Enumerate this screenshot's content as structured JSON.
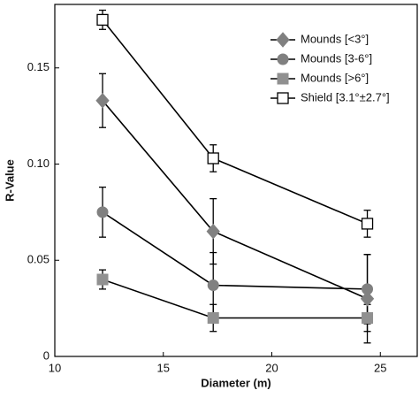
{
  "chart_data": {
    "type": "line",
    "x_label": "Diameter (m)",
    "y_label": "R-Value",
    "xlim": [
      10,
      26.7
    ],
    "xticks": [
      10,
      15,
      20,
      25
    ],
    "ylim": [
      0,
      0.183
    ],
    "yticks": [
      0,
      0.05,
      {
        "value": 0.1,
        "label": "0.10"
      },
      0.15
    ],
    "legend": "top-right",
    "series": [
      {
        "name": "Mounds [<3°]",
        "color": "#808080",
        "marker": "diamond",
        "x": [
          12.2,
          17.3,
          24.4
        ],
        "values": [
          0.133,
          0.065,
          0.03
        ],
        "errors": [
          0.014,
          0.017,
          0.023
        ]
      },
      {
        "name": "Mounds [3-6°]",
        "color": "#808080",
        "marker": "circle",
        "x": [
          12.2,
          17.3,
          24.4
        ],
        "values": [
          0.075,
          0.037,
          0.035
        ],
        "errors": [
          0.013,
          0.017,
          0.018
        ]
      },
      {
        "name": "Mounds [>6°]",
        "color": "#909090",
        "marker": "square",
        "x": [
          12.2,
          17.3,
          24.4
        ],
        "values": [
          0.04,
          0.02,
          0.02
        ],
        "errors": [
          0.005,
          0.007,
          0.007
        ]
      },
      {
        "name": "Shield [3.1°±2.7°]",
        "color": "#ffffff",
        "marker": "open-square",
        "x": [
          12.2,
          17.3,
          24.4
        ],
        "values": [
          0.175,
          0.103,
          0.069
        ],
        "errors": [
          0.005,
          0.007,
          0.007
        ]
      }
    ]
  }
}
